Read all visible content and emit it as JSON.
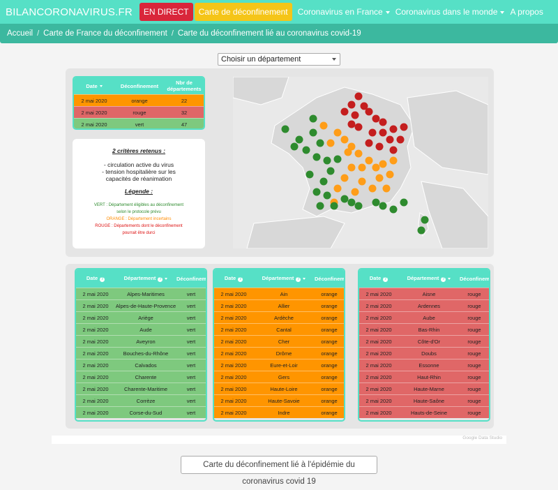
{
  "nav": {
    "brand": "BILANCORONAVIRUS.FR",
    "live": "EN DIRECT",
    "deconf": "Carte de déconfinement",
    "france": "Coronavirus en France",
    "monde": "Coronavirus dans le monde",
    "apropos": "A propos"
  },
  "breadcrumb": [
    "Accueil",
    "Carte de France du déconfinement",
    "Carte du déconfinement lié au coronavirus covid-19"
  ],
  "select": {
    "value": "Choisir un département"
  },
  "summary": {
    "headers": [
      "Date",
      "Déconfinement",
      "Nbr de départements"
    ],
    "rows": [
      [
        "2 mai 2020",
        "orange",
        "22"
      ],
      [
        "2 mai 2020",
        "rouge",
        "32"
      ],
      [
        "2 mai 2020",
        "vert",
        "47"
      ]
    ]
  },
  "legend": {
    "title1": "2 critères retenus :",
    "crit1": "- circulation active du virus",
    "crit2": "- tension hospitalière sur les capacités de réanimation",
    "title2": "Légende :",
    "vert": "VERT : Département éligibles au déconfinement selon le protocole prévu",
    "orange": "ORANGE : Département incertains",
    "rouge": "ROUGE : Départements dont le déconfinement pourrait être durci"
  },
  "colors": {
    "teal": "#56e0c6",
    "green": "#7ec97e",
    "orange": "#ff9500",
    "red": "#e06767",
    "dot_green": "#2e8b2e",
    "dot_orange": "#ff9d18",
    "dot_red": "#c41e1e"
  },
  "tables": {
    "headers": [
      "Date",
      "Département",
      "Déconfinement"
    ],
    "vert": [
      [
        "2 mai 2020",
        "Alpes-Maritimes",
        "vert"
      ],
      [
        "2 mai 2020",
        "Alpes-de-Haute-Provence",
        "vert"
      ],
      [
        "2 mai 2020",
        "Ariège",
        "vert"
      ],
      [
        "2 mai 2020",
        "Aude",
        "vert"
      ],
      [
        "2 mai 2020",
        "Aveyron",
        "vert"
      ],
      [
        "2 mai 2020",
        "Bouches-du-Rhône",
        "vert"
      ],
      [
        "2 mai 2020",
        "Calvados",
        "vert"
      ],
      [
        "2 mai 2020",
        "Charente",
        "vert"
      ],
      [
        "2 mai 2020",
        "Charente-Maritime",
        "vert"
      ],
      [
        "2 mai 2020",
        "Corrèze",
        "vert"
      ],
      [
        "2 mai 2020",
        "Corse-du-Sud",
        "vert"
      ]
    ],
    "orange": [
      [
        "2 mai 2020",
        "Ain",
        "orange"
      ],
      [
        "2 mai 2020",
        "Allier",
        "orange"
      ],
      [
        "2 mai 2020",
        "Ardèche",
        "orange"
      ],
      [
        "2 mai 2020",
        "Cantal",
        "orange"
      ],
      [
        "2 mai 2020",
        "Cher",
        "orange"
      ],
      [
        "2 mai 2020",
        "Drôme",
        "orange"
      ],
      [
        "2 mai 2020",
        "Eure-et-Loir",
        "orange"
      ],
      [
        "2 mai 2020",
        "Gers",
        "orange"
      ],
      [
        "2 mai 2020",
        "Haute-Loire",
        "orange"
      ],
      [
        "2 mai 2020",
        "Haute-Savoie",
        "orange"
      ],
      [
        "2 mai 2020",
        "Indre",
        "orange"
      ]
    ],
    "rouge": [
      [
        "2 mai 2020",
        "Aisne",
        "rouge"
      ],
      [
        "2 mai 2020",
        "Ardennes",
        "rouge"
      ],
      [
        "2 mai 2020",
        "Aube",
        "rouge"
      ],
      [
        "2 mai 2020",
        "Bas-Rhin",
        "rouge"
      ],
      [
        "2 mai 2020",
        "Côte-d'Or",
        "rouge"
      ],
      [
        "2 mai 2020",
        "Doubs",
        "rouge"
      ],
      [
        "2 mai 2020",
        "Essonne",
        "rouge"
      ],
      [
        "2 mai 2020",
        "Haut-Rhin",
        "rouge"
      ],
      [
        "2 mai 2020",
        "Haute-Marne",
        "rouge"
      ],
      [
        "2 mai 2020",
        "Haute-Saône",
        "rouge"
      ],
      [
        "2 mai 2020",
        "Hauts-de-Seine",
        "rouge"
      ]
    ]
  },
  "footer": {
    "gds": "Google Data Studio",
    "button": "Carte du déconfinement lié à l'épidémie du coronavirus covid 19"
  }
}
